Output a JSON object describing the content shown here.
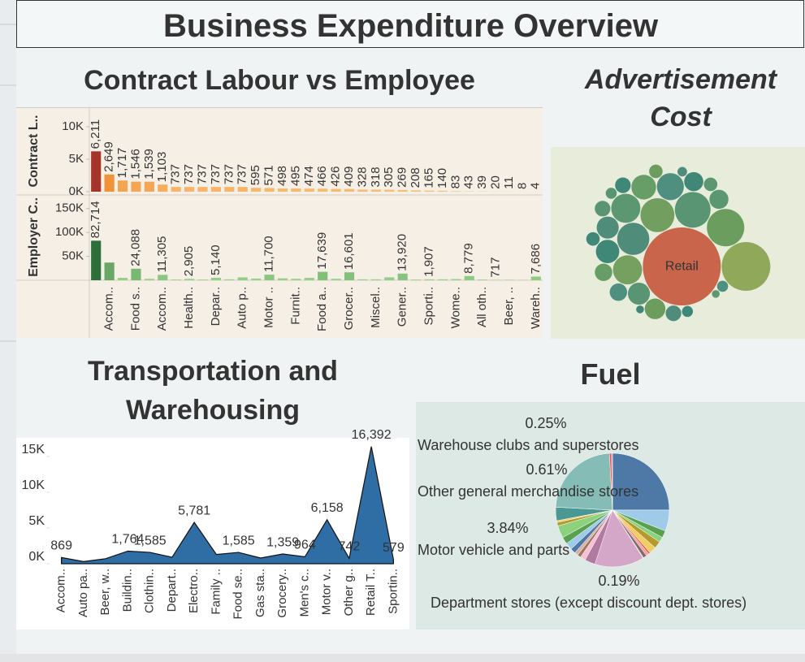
{
  "title": "Business Expenditure Overview",
  "chart_data": [
    {
      "type": "bar",
      "title": "Contract Labour vs Employee",
      "categories": [
        null,
        "Accom..",
        null,
        "Food s..",
        null,
        "Accom..",
        null,
        "Health..",
        null,
        "Depar..",
        null,
        "Auto p..",
        null,
        "Motor ..",
        null,
        "Furnit..",
        null,
        "Food a..",
        null,
        "Grocer..",
        null,
        "Miscel..",
        null,
        "Gener..",
        null,
        "Sporti..",
        null,
        "Wome..",
        null,
        "All oth..",
        null,
        "Beer, ..",
        null,
        "Wareh.."
      ],
      "panels": [
        {
          "ylabel": "Contract L..",
          "values": [
            6211,
            2649,
            1717,
            1546,
            1539,
            1103,
            737,
            737,
            737,
            737,
            737,
            737,
            595,
            571,
            498,
            495,
            474,
            466,
            426,
            409,
            328,
            318,
            305,
            269,
            208,
            165,
            140,
            83,
            43,
            39,
            20,
            11,
            8,
            4
          ],
          "value_labels": [
            "6,211",
            "2,649",
            "1,717",
            "1,546",
            "1,539",
            "1,103",
            "737",
            "737",
            "737",
            "737",
            "737",
            "737",
            "595",
            "571",
            "498",
            "495",
            "474",
            "466",
            "426",
            "409",
            "328",
            "318",
            "305",
            "269",
            "208",
            "165",
            "140",
            "83",
            "43",
            "39",
            "20",
            "11",
            "8",
            "4"
          ],
          "ylim": [
            0,
            12000
          ],
          "yticks": [
            {
              "value": 0,
              "label": "0K"
            },
            {
              "value": 5000,
              "label": "5K"
            },
            {
              "value": 10000,
              "label": "10K"
            }
          ],
          "colors": [
            "#f8c27a",
            "#f08a2e",
            "#a3352a"
          ]
        },
        {
          "ylabel": "Employer C..",
          "values": [
            82714,
            37000,
            5000,
            24088,
            3000,
            11305,
            1500,
            2905,
            1500,
            5140,
            2000,
            6000,
            3500,
            11700,
            4000,
            3000,
            5000,
            17639,
            3000,
            16601,
            2000,
            2000,
            6000,
            13920,
            1500,
            1907,
            2000,
            2500,
            8779,
            1500,
            717,
            1000,
            500,
            7686
          ],
          "value_labels": [
            "82,714",
            null,
            null,
            "24,088",
            null,
            "11,305",
            null,
            "2,905",
            null,
            "5,140",
            null,
            null,
            null,
            "11,700",
            null,
            null,
            null,
            "17,639",
            null,
            "16,601",
            null,
            null,
            null,
            "13,920",
            null,
            "1,907",
            null,
            null,
            "8,779",
            null,
            "717",
            null,
            null,
            "7,686"
          ],
          "ylim": [
            0,
            170000
          ],
          "yticks": [
            {
              "value": 50000,
              "label": "50K"
            },
            {
              "value": 100000,
              "label": "100K"
            },
            {
              "value": 150000,
              "label": "150K"
            }
          ],
          "colors": [
            "#98d68a",
            "#2d6e3a"
          ]
        }
      ]
    },
    {
      "type": "packed_bubble",
      "title": "Advertisement Cost",
      "categories": [
        "Retail",
        null,
        null,
        null,
        null,
        null,
        null,
        null,
        null,
        null,
        null,
        null,
        null,
        null,
        null,
        null,
        null,
        null,
        null,
        null,
        null,
        null,
        null,
        null,
        null,
        null,
        null,
        null,
        null,
        null
      ],
      "values": [
        100,
        39,
        23,
        21,
        19,
        17,
        14,
        14,
        12,
        10,
        9,
        8,
        8,
        7,
        6,
        6,
        5,
        5,
        4,
        4,
        4,
        3,
        3,
        3,
        2,
        2,
        2,
        1.5,
        1,
        1
      ],
      "colors": [
        "#c8654a",
        "#8fa85a",
        "#6b9e5e",
        "#5a9573",
        "#729f5f",
        "#4f8c7a",
        "#76a060",
        "#5b9871",
        "#4e8f80",
        "#679d66",
        "#3f8877",
        "#5a9573",
        "#4f8c7a",
        "#6b9e5e",
        "#3f8877",
        "#5b9871",
        "#4e8f80",
        "#679d66",
        "#3f8877",
        "#5a9573",
        "#4f8c7a",
        "#6b9e5e",
        "#3f8877",
        "#5b9871",
        "#4e8f80",
        "#3f8877",
        "#5a9573",
        "#4f8c7a",
        "#3f8877",
        "#5b9871"
      ]
    },
    {
      "type": "area",
      "title": "Transportation and Warehousing",
      "categories": [
        "Accom..",
        "Auto pa..",
        "Beer, w..",
        "Buildin..",
        "Clothin..",
        "Depart..",
        "Electro..",
        "Family ..",
        "Food se..",
        "Gas sta..",
        "Grocery..",
        "Men's c..",
        "Motor v..",
        "Other g..",
        "Retail T..",
        "Sportin.."
      ],
      "values": [
        869,
        300,
        700,
        1764,
        1585,
        900,
        5781,
        1300,
        1585,
        800,
        1359,
        964,
        6158,
        742,
        16392,
        579
      ],
      "value_labels": [
        "869",
        null,
        null,
        "1,764",
        "1,585",
        null,
        "5,781",
        null,
        "1,585",
        null,
        "1,359",
        "964",
        "6,158",
        "742",
        "16,392",
        "579"
      ],
      "ylim": [
        0,
        17500
      ],
      "yticks": [
        {
          "value": 0,
          "label": "0K"
        },
        {
          "value": 5000,
          "label": "5K"
        },
        {
          "value": 10000,
          "label": "10K"
        },
        {
          "value": 15000,
          "label": "15K"
        }
      ],
      "color": "#2f6ea5"
    },
    {
      "type": "pie",
      "title": "Fuel",
      "categories": [
        null,
        null,
        null,
        null,
        null,
        null,
        null,
        null,
        null,
        "Department stores (except discount dept. stores)",
        null,
        null,
        null,
        null,
        null,
        null,
        null,
        null,
        null,
        null,
        null,
        "Motor vehicle and parts",
        null,
        "Other general merchandise stores",
        "Warehouse clubs and superstores"
      ],
      "values": [
        25,
        6,
        2,
        1.5,
        2,
        2,
        0.5,
        0.8,
        1,
        0.19,
        14,
        3,
        1.5,
        1,
        1,
        1.5,
        2,
        2,
        3.5,
        1,
        0.5,
        3.84,
        23.3,
        0.61,
        0.25
      ],
      "value_labels": [
        null,
        null,
        null,
        null,
        null,
        null,
        null,
        null,
        null,
        "0.19%",
        null,
        null,
        null,
        null,
        null,
        null,
        null,
        null,
        null,
        null,
        null,
        "3.84%",
        null,
        "0.61%",
        "0.25%"
      ],
      "colors": [
        "#4e79a7",
        "#a0cbe8",
        "#59a14f",
        "#8cd17d",
        "#b6992d",
        "#f1ce63",
        "#e15759",
        "#ff9d9a",
        "#79706e",
        "#ff9d9a",
        "#d4a6c8",
        "#b07aa1",
        "#fabfd2",
        "#9d7660",
        "#d7b5a6",
        "#4e79a7",
        "#a0cbe8",
        "#59a14f",
        "#8cd17d",
        "#b6992d",
        "#f1ce63",
        "#499894",
        "#86bcb6",
        "#e15759",
        "#d37295"
      ]
    }
  ]
}
